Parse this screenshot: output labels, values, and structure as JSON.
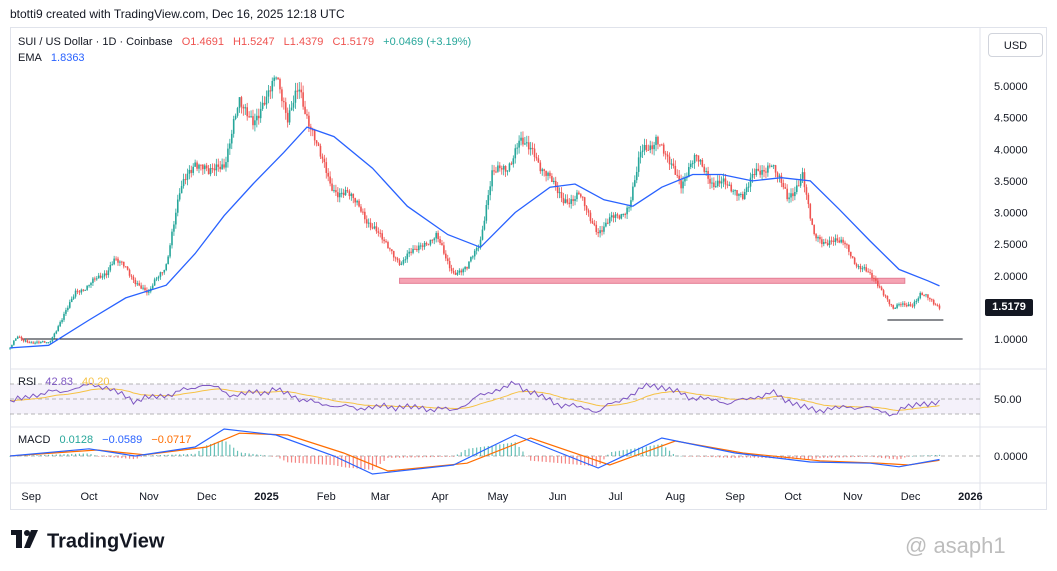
{
  "caption": "btotti9 created with TradingView.com, Dec 16, 2025 12:18 UTC",
  "legend": {
    "symbol": "SUI / US Dollar · 1D · Coinbase",
    "open": "O1.4691",
    "high": "H1.5247",
    "low": "L1.4379",
    "close": "C1.5179",
    "change": "+0.0469 (+3.19%)",
    "ema_label": "EMA",
    "ema_value": "1.8363",
    "rsi_label": "RSI",
    "rsi_value": "42.83",
    "rsi_ma_value": "40.20",
    "macd_label": "MACD",
    "macd_hist": "0.0128",
    "macd_line": "−0.0589",
    "macd_signal": "−0.0717"
  },
  "currency_button": "USD",
  "price_tag": "1.5179",
  "brand": "TradingView",
  "watermark": "@ asaph1",
  "colors": {
    "up": "#26a69a",
    "down": "#ef5350",
    "ema": "#2962ff",
    "rsi": "#7e57c2",
    "rsi_ma": "#f6c244",
    "macd": "#2962ff",
    "signal": "#ff6d00",
    "support": "#f5a3b3"
  },
  "chart_data": [
    {
      "type": "candlestick",
      "title": "SUI / US Dollar · 1D · Coinbase",
      "x_ticks": [
        "Sep",
        "Oct",
        "Nov",
        "Dec",
        "2025",
        "Feb",
        "Mar",
        "Apr",
        "May",
        "Jun",
        "Jul",
        "Aug",
        "Sep",
        "Oct",
        "Nov",
        "Dec",
        "2026"
      ],
      "y_ticks": [
        "1.0000",
        "1.5000",
        "2.0000",
        "2.5000",
        "3.0000",
        "3.5000",
        "4.0000",
        "4.5000",
        "5.0000"
      ],
      "ylim": [
        0.6,
        5.5
      ],
      "close_path": [
        {
          "x": "2024-08-21",
          "y": 0.85
        },
        {
          "x": "2024-08-25",
          "y": 1.05
        },
        {
          "x": "2024-09-01",
          "y": 0.93
        },
        {
          "x": "2024-09-10",
          "y": 0.95
        },
        {
          "x": "2024-09-17",
          "y": 1.3
        },
        {
          "x": "2024-09-24",
          "y": 1.75
        },
        {
          "x": "2024-10-01",
          "y": 1.85
        },
        {
          "x": "2024-10-10",
          "y": 2.05
        },
        {
          "x": "2024-10-14",
          "y": 2.3
        },
        {
          "x": "2024-10-24",
          "y": 1.95
        },
        {
          "x": "2024-11-01",
          "y": 1.72
        },
        {
          "x": "2024-11-10",
          "y": 2.2
        },
        {
          "x": "2024-11-17",
          "y": 3.3
        },
        {
          "x": "2024-11-25",
          "y": 3.85
        },
        {
          "x": "2024-12-02",
          "y": 3.6
        },
        {
          "x": "2024-12-10",
          "y": 3.8
        },
        {
          "x": "2024-12-18",
          "y": 4.7
        },
        {
          "x": "2024-12-25",
          "y": 4.5
        },
        {
          "x": "2025-01-01",
          "y": 4.7
        },
        {
          "x": "2025-01-06",
          "y": 5.25
        },
        {
          "x": "2025-01-12",
          "y": 4.5
        },
        {
          "x": "2025-01-18",
          "y": 4.9
        },
        {
          "x": "2025-01-25",
          "y": 4.3
        },
        {
          "x": "2025-02-03",
          "y": 3.4
        },
        {
          "x": "2025-02-12",
          "y": 3.3
        },
        {
          "x": "2025-02-20",
          "y": 3.0
        },
        {
          "x": "2025-03-01",
          "y": 2.6
        },
        {
          "x": "2025-03-12",
          "y": 2.2
        },
        {
          "x": "2025-03-22",
          "y": 2.5
        },
        {
          "x": "2025-03-30",
          "y": 2.6
        },
        {
          "x": "2025-04-08",
          "y": 2.05
        },
        {
          "x": "2025-04-15",
          "y": 2.1
        },
        {
          "x": "2025-04-22",
          "y": 2.6
        },
        {
          "x": "2025-04-28",
          "y": 3.6
        },
        {
          "x": "2025-05-05",
          "y": 3.7
        },
        {
          "x": "2025-05-12",
          "y": 4.1
        },
        {
          "x": "2025-05-20",
          "y": 3.95
        },
        {
          "x": "2025-05-28",
          "y": 3.5
        },
        {
          "x": "2025-06-04",
          "y": 3.2
        },
        {
          "x": "2025-06-12",
          "y": 3.25
        },
        {
          "x": "2025-06-22",
          "y": 2.7
        },
        {
          "x": "2025-06-30",
          "y": 2.9
        },
        {
          "x": "2025-07-08",
          "y": 3.1
        },
        {
          "x": "2025-07-14",
          "y": 3.9
        },
        {
          "x": "2025-07-22",
          "y": 4.2
        },
        {
          "x": "2025-07-28",
          "y": 3.8
        },
        {
          "x": "2025-08-04",
          "y": 3.5
        },
        {
          "x": "2025-08-12",
          "y": 3.85
        },
        {
          "x": "2025-08-20",
          "y": 3.5
        },
        {
          "x": "2025-08-28",
          "y": 3.4
        },
        {
          "x": "2025-09-05",
          "y": 3.3
        },
        {
          "x": "2025-09-12",
          "y": 3.6
        },
        {
          "x": "2025-09-20",
          "y": 3.8
        },
        {
          "x": "2025-09-28",
          "y": 3.2
        },
        {
          "x": "2025-10-06",
          "y": 3.6
        },
        {
          "x": "2025-10-10",
          "y": 2.9
        },
        {
          "x": "2025-10-12",
          "y": 2.6
        },
        {
          "x": "2025-10-20",
          "y": 2.55
        },
        {
          "x": "2025-10-28",
          "y": 2.5
        },
        {
          "x": "2025-11-04",
          "y": 2.15
        },
        {
          "x": "2025-11-12",
          "y": 1.95
        },
        {
          "x": "2025-11-18",
          "y": 1.7
        },
        {
          "x": "2025-11-22",
          "y": 1.45
        },
        {
          "x": "2025-11-26",
          "y": 1.55
        },
        {
          "x": "2025-12-02",
          "y": 1.55
        },
        {
          "x": "2025-12-06",
          "y": 1.7
        },
        {
          "x": "2025-12-12",
          "y": 1.6
        },
        {
          "x": "2025-12-16",
          "y": 1.52
        }
      ],
      "ema": [
        {
          "x": "2024-08-21",
          "y": 0.86
        },
        {
          "x": "2024-09-10",
          "y": 0.9
        },
        {
          "x": "2024-10-01",
          "y": 1.3
        },
        {
          "x": "2024-10-20",
          "y": 1.65
        },
        {
          "x": "2024-11-10",
          "y": 1.85
        },
        {
          "x": "2024-11-25",
          "y": 2.35
        },
        {
          "x": "2024-12-10",
          "y": 2.95
        },
        {
          "x": "2024-12-25",
          "y": 3.45
        },
        {
          "x": "2025-01-10",
          "y": 3.95
        },
        {
          "x": "2025-01-22",
          "y": 4.35
        },
        {
          "x": "2025-02-05",
          "y": 4.2
        },
        {
          "x": "2025-02-25",
          "y": 3.7
        },
        {
          "x": "2025-03-15",
          "y": 3.1
        },
        {
          "x": "2025-04-05",
          "y": 2.65
        },
        {
          "x": "2025-04-22",
          "y": 2.45
        },
        {
          "x": "2025-05-10",
          "y": 3.0
        },
        {
          "x": "2025-05-28",
          "y": 3.4
        },
        {
          "x": "2025-06-10",
          "y": 3.45
        },
        {
          "x": "2025-06-25",
          "y": 3.2
        },
        {
          "x": "2025-07-10",
          "y": 3.1
        },
        {
          "x": "2025-07-25",
          "y": 3.4
        },
        {
          "x": "2025-08-10",
          "y": 3.6
        },
        {
          "x": "2025-08-25",
          "y": 3.6
        },
        {
          "x": "2025-09-10",
          "y": 3.5
        },
        {
          "x": "2025-09-25",
          "y": 3.55
        },
        {
          "x": "2025-10-10",
          "y": 3.5
        },
        {
          "x": "2025-10-25",
          "y": 3.05
        },
        {
          "x": "2025-11-10",
          "y": 2.55
        },
        {
          "x": "2025-11-25",
          "y": 2.1
        },
        {
          "x": "2025-12-10",
          "y": 1.92
        },
        {
          "x": "2025-12-16",
          "y": 1.84
        }
      ],
      "levels": [
        {
          "type": "zone",
          "from": 1.88,
          "to": 1.96,
          "start": "2025-03-11",
          "end": "2025-11-28"
        },
        {
          "type": "line",
          "y": 1.0,
          "start": "2024-08-27",
          "end": "2025-12-28"
        },
        {
          "type": "line",
          "y": 1.3,
          "start": "2025-11-19",
          "end": "2025-12-18"
        }
      ]
    },
    {
      "type": "line",
      "title": "RSI",
      "y_ticks": [
        "50.00"
      ],
      "band": [
        30,
        70
      ],
      "ylim": [
        25,
        78
      ],
      "series": [
        {
          "name": "RSI",
          "values": [
            {
              "x": "2024-08-21",
              "y": 45
            },
            {
              "x": "2024-09-01",
              "y": 55
            },
            {
              "x": "2024-09-20",
              "y": 62
            },
            {
              "x": "2024-10-05",
              "y": 70
            },
            {
              "x": "2024-10-25",
              "y": 48
            },
            {
              "x": "2024-11-15",
              "y": 58
            },
            {
              "x": "2024-11-30",
              "y": 70
            },
            {
              "x": "2024-12-15",
              "y": 55
            },
            {
              "x": "2025-01-06",
              "y": 62
            },
            {
              "x": "2025-01-25",
              "y": 45
            },
            {
              "x": "2025-02-15",
              "y": 38
            },
            {
              "x": "2025-03-10",
              "y": 40
            },
            {
              "x": "2025-04-08",
              "y": 35
            },
            {
              "x": "2025-04-25",
              "y": 58
            },
            {
              "x": "2025-05-10",
              "y": 70
            },
            {
              "x": "2025-05-30",
              "y": 45
            },
            {
              "x": "2025-06-22",
              "y": 34
            },
            {
              "x": "2025-07-20",
              "y": 70
            },
            {
              "x": "2025-08-10",
              "y": 52
            },
            {
              "x": "2025-08-30",
              "y": 45
            },
            {
              "x": "2025-09-20",
              "y": 58
            },
            {
              "x": "2025-10-10",
              "y": 35
            },
            {
              "x": "2025-11-05",
              "y": 40
            },
            {
              "x": "2025-11-22",
              "y": 30
            },
            {
              "x": "2025-12-05",
              "y": 45
            },
            {
              "x": "2025-12-16",
              "y": 42.83
            }
          ]
        }
      ]
    },
    {
      "type": "line",
      "title": "MACD",
      "y_ticks": [
        "0.0000"
      ],
      "ylim": [
        -0.4,
        0.55
      ],
      "series": [
        {
          "name": "MACD",
          "values": [
            {
              "x": "2024-08-21",
              "y": 0.0
            },
            {
              "x": "2024-10-01",
              "y": 0.12
            },
            {
              "x": "2024-10-25",
              "y": 0.0
            },
            {
              "x": "2024-11-25",
              "y": 0.15
            },
            {
              "x": "2024-12-10",
              "y": 0.45
            },
            {
              "x": "2025-01-06",
              "y": 0.35
            },
            {
              "x": "2025-02-05",
              "y": 0.0
            },
            {
              "x": "2025-02-25",
              "y": -0.3
            },
            {
              "x": "2025-04-08",
              "y": -0.15
            },
            {
              "x": "2025-05-10",
              "y": 0.35
            },
            {
              "x": "2025-06-22",
              "y": -0.2
            },
            {
              "x": "2025-07-25",
              "y": 0.3
            },
            {
              "x": "2025-09-01",
              "y": 0.05
            },
            {
              "x": "2025-10-10",
              "y": -0.1
            },
            {
              "x": "2025-11-10",
              "y": -0.12
            },
            {
              "x": "2025-11-25",
              "y": -0.18
            },
            {
              "x": "2025-12-16",
              "y": -0.0589
            }
          ]
        },
        {
          "name": "Signal",
          "values": [
            {
              "x": "2024-08-21",
              "y": 0.0
            },
            {
              "x": "2024-10-05",
              "y": 0.1
            },
            {
              "x": "2024-10-30",
              "y": 0.02
            },
            {
              "x": "2024-12-01",
              "y": 0.15
            },
            {
              "x": "2024-12-18",
              "y": 0.38
            },
            {
              "x": "2025-01-12",
              "y": 0.35
            },
            {
              "x": "2025-02-10",
              "y": 0.05
            },
            {
              "x": "2025-03-05",
              "y": -0.25
            },
            {
              "x": "2025-04-15",
              "y": -0.12
            },
            {
              "x": "2025-05-18",
              "y": 0.3
            },
            {
              "x": "2025-06-28",
              "y": -0.15
            },
            {
              "x": "2025-08-01",
              "y": 0.25
            },
            {
              "x": "2025-09-05",
              "y": 0.05
            },
            {
              "x": "2025-10-15",
              "y": -0.08
            },
            {
              "x": "2025-11-15",
              "y": -0.12
            },
            {
              "x": "2025-11-30",
              "y": -0.15
            },
            {
              "x": "2025-12-16",
              "y": -0.0717
            }
          ]
        }
      ]
    }
  ]
}
